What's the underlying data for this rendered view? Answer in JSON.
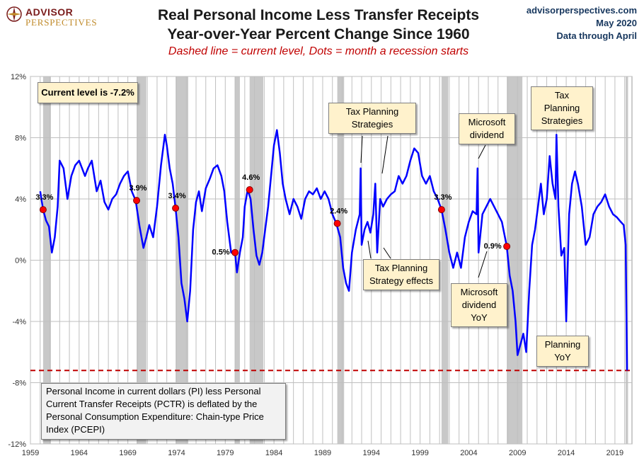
{
  "header": {
    "logo_word1": "ADVISOR",
    "logo_word2": "PERSPECTIVES",
    "title_line1": "Real Personal Income Less Transfer Receipts",
    "title_line2": "Year-over-Year Percent Change Since 1960",
    "subtitle": "Dashed line = current level, Dots = month a recession starts",
    "source_line1": "advisorperspectives.com",
    "source_line2": "May 2020",
    "source_line3": "Data through April"
  },
  "current_box": "Current level is -7.2%",
  "footnote": "Personal Income in current dollars  (PI) less Personal Current Transfer Receipts (PCTR) is deflated by the Personal Consumption Expenditure: Chain-type Price Index (PCEPI)",
  "annotations": {
    "tax1": "Tax Planning Strategies",
    "tax_effects": "Tax Planning Strategy effects",
    "msft": "Microsoft dividend",
    "msft_yoy": "Microsoft dividend YoY",
    "tax2": "Tax Planning Strategies",
    "planning_yoy": "Planning YoY"
  },
  "colors": {
    "series": "#0000ff",
    "recession_shade": "#c8c8c8",
    "dot": "#ff0000",
    "current_line": "#c00000",
    "note_fill": "#fff2cc"
  },
  "chart_data": {
    "type": "line",
    "title": "Real Personal Income Less Transfer Receipts",
    "subtitle": "Year-over-Year Percent Change Since 1960",
    "xlabel": "",
    "ylabel": "",
    "xlim": [
      1959,
      2020.75
    ],
    "ylim": [
      -12,
      12
    ],
    "x_ticks": [
      1959,
      1964,
      1969,
      1974,
      1979,
      1984,
      1989,
      1994,
      1999,
      2004,
      2009,
      2014,
      2019
    ],
    "y_ticks": [
      -12,
      -8,
      -4,
      0,
      4,
      8,
      12
    ],
    "y_tick_labels": [
      "-12%",
      "-8%",
      "-4%",
      "0%",
      "4%",
      "8%",
      "12%"
    ],
    "grid": true,
    "current_level": -7.2,
    "recessions": [
      [
        1960.3,
        1961.1
      ],
      [
        1969.9,
        1970.9
      ],
      [
        1973.9,
        1975.2
      ],
      [
        1980.0,
        1980.5
      ],
      [
        1981.5,
        1982.9
      ],
      [
        1990.5,
        1991.2
      ],
      [
        2001.2,
        2001.9
      ],
      [
        2007.9,
        2009.5
      ],
      [
        2020.1,
        2020.35
      ]
    ],
    "recession_start_values": [
      {
        "x": 1960.3,
        "y": 3.3,
        "label": "3.3%"
      },
      {
        "x": 1969.9,
        "y": 3.9,
        "label": "3.9%"
      },
      {
        "x": 1973.9,
        "y": 3.4,
        "label": "3.4%"
      },
      {
        "x": 1980.0,
        "y": 0.5,
        "label": "0.5%"
      },
      {
        "x": 1981.5,
        "y": 4.6,
        "label": "4.6%"
      },
      {
        "x": 1990.5,
        "y": 2.4,
        "label": "2.4%"
      },
      {
        "x": 2001.2,
        "y": 3.3,
        "label": "3.3%"
      },
      {
        "x": 2007.9,
        "y": 0.9,
        "label": "0.9%"
      }
    ],
    "series": [
      {
        "x": [
          1960.0,
          1960.3,
          1960.6,
          1960.9,
          1961.2,
          1961.5,
          1961.8,
          1962.0,
          1962.4,
          1962.8,
          1963.2,
          1963.6,
          1964.0,
          1964.3,
          1964.6,
          1964.9,
          1965.3,
          1965.8,
          1966.2,
          1966.6,
          1967.0,
          1967.4,
          1967.8,
          1968.2,
          1968.6,
          1969.0,
          1969.4,
          1969.8,
          1970.2,
          1970.6,
          1970.9,
          1971.2,
          1971.6,
          1972.0,
          1972.4,
          1972.8,
          1973.0,
          1973.3,
          1973.6,
          1973.9,
          1974.2,
          1974.5,
          1974.8,
          1975.1,
          1975.4,
          1975.7,
          1976.0,
          1976.3,
          1976.6,
          1977.0,
          1977.4,
          1977.8,
          1978.2,
          1978.6,
          1978.9,
          1979.2,
          1979.6,
          1980.0,
          1980.2,
          1980.5,
          1980.8,
          1981.0,
          1981.3,
          1981.6,
          1981.9,
          1982.2,
          1982.5,
          1982.8,
          1983.1,
          1983.4,
          1983.7,
          1984.0,
          1984.3,
          1984.6,
          1984.9,
          1985.2,
          1985.6,
          1986.0,
          1986.4,
          1986.8,
          1987.2,
          1987.6,
          1988.0,
          1988.4,
          1988.8,
          1989.2,
          1989.6,
          1990.0,
          1990.4,
          1990.8,
          1991.1,
          1991.4,
          1991.7,
          1992.0,
          1992.4,
          1992.8,
          1992.9,
          1993.0,
          1993.3,
          1993.6,
          1993.9,
          1994.2,
          1994.4,
          1994.6,
          1994.9,
          1995.2,
          1995.6,
          1996.0,
          1996.4,
          1996.8,
          1997.2,
          1997.6,
          1998.0,
          1998.4,
          1998.8,
          1999.2,
          1999.6,
          2000.0,
          2000.4,
          2000.8,
          2001.2,
          2001.6,
          2002.0,
          2002.4,
          2002.8,
          2003.2,
          2003.6,
          2004.0,
          2004.4,
          2004.8,
          2004.9,
          2005.0,
          2005.4,
          2005.8,
          2006.2,
          2006.6,
          2007.0,
          2007.4,
          2007.9,
          2008.2,
          2008.5,
          2008.8,
          2009.0,
          2009.3,
          2009.6,
          2009.9,
          2010.2,
          2010.5,
          2010.8,
          2011.1,
          2011.4,
          2011.7,
          2012.0,
          2012.3,
          2012.6,
          2012.9,
          2013.0,
          2013.2,
          2013.5,
          2013.8,
          2014.0,
          2014.3,
          2014.6,
          2014.9,
          2015.2,
          2015.6,
          2016.0,
          2016.4,
          2016.8,
          2017.2,
          2017.6,
          2018.0,
          2018.4,
          2018.8,
          2019.2,
          2019.6,
          2019.9,
          2020.1,
          2020.25
        ],
        "y": [
          4.5,
          3.3,
          2.6,
          2.2,
          0.5,
          1.5,
          3.5,
          6.5,
          6.0,
          4.0,
          5.5,
          6.2,
          6.5,
          6.0,
          5.5,
          6.0,
          6.5,
          4.5,
          5.2,
          3.8,
          3.3,
          4.0,
          4.3,
          5.0,
          5.5,
          5.8,
          4.5,
          3.9,
          2.2,
          0.8,
          1.5,
          2.3,
          1.5,
          3.5,
          6.2,
          8.2,
          7.5,
          6.0,
          5.0,
          3.4,
          1.5,
          -1.5,
          -2.5,
          -4.0,
          -2.0,
          2.0,
          3.8,
          4.5,
          3.2,
          4.7,
          5.3,
          6.0,
          6.2,
          5.5,
          4.5,
          2.5,
          0.5,
          0.5,
          -0.8,
          0.5,
          1.5,
          3.5,
          4.6,
          4.0,
          2.0,
          0.3,
          -0.3,
          0.5,
          2.0,
          3.5,
          5.5,
          7.5,
          8.5,
          7.0,
          5.0,
          4.0,
          3.0,
          4.0,
          3.5,
          2.7,
          4.0,
          4.5,
          4.3,
          4.7,
          4.0,
          4.5,
          4.0,
          3.0,
          2.4,
          1.5,
          -0.5,
          -1.5,
          -2.0,
          0.5,
          2.0,
          3.0,
          6.0,
          1.0,
          2.0,
          2.5,
          1.8,
          3.0,
          5.0,
          0.5,
          4.0,
          3.5,
          4.0,
          4.3,
          4.5,
          5.5,
          5.0,
          5.5,
          6.5,
          7.3,
          7.0,
          5.5,
          5.0,
          5.5,
          4.5,
          4.0,
          3.3,
          2.0,
          0.5,
          -0.5,
          0.5,
          -0.5,
          1.5,
          2.5,
          3.2,
          3.0,
          6.0,
          0.5,
          3.0,
          3.5,
          4.0,
          3.5,
          3.0,
          2.5,
          0.9,
          -1.0,
          -2.0,
          -4.0,
          -6.2,
          -5.5,
          -4.8,
          -6.0,
          -2.0,
          1.0,
          2.0,
          3.5,
          5.0,
          3.0,
          4.0,
          6.8,
          5.0,
          4.0,
          8.2,
          3.5,
          0.3,
          0.8,
          -4.0,
          3.0,
          5.0,
          5.8,
          5.0,
          3.5,
          1.0,
          1.5,
          3.0,
          3.5,
          3.8,
          4.3,
          3.5,
          3.0,
          2.8,
          2.5,
          2.3,
          1.0,
          -7.2
        ]
      }
    ]
  }
}
